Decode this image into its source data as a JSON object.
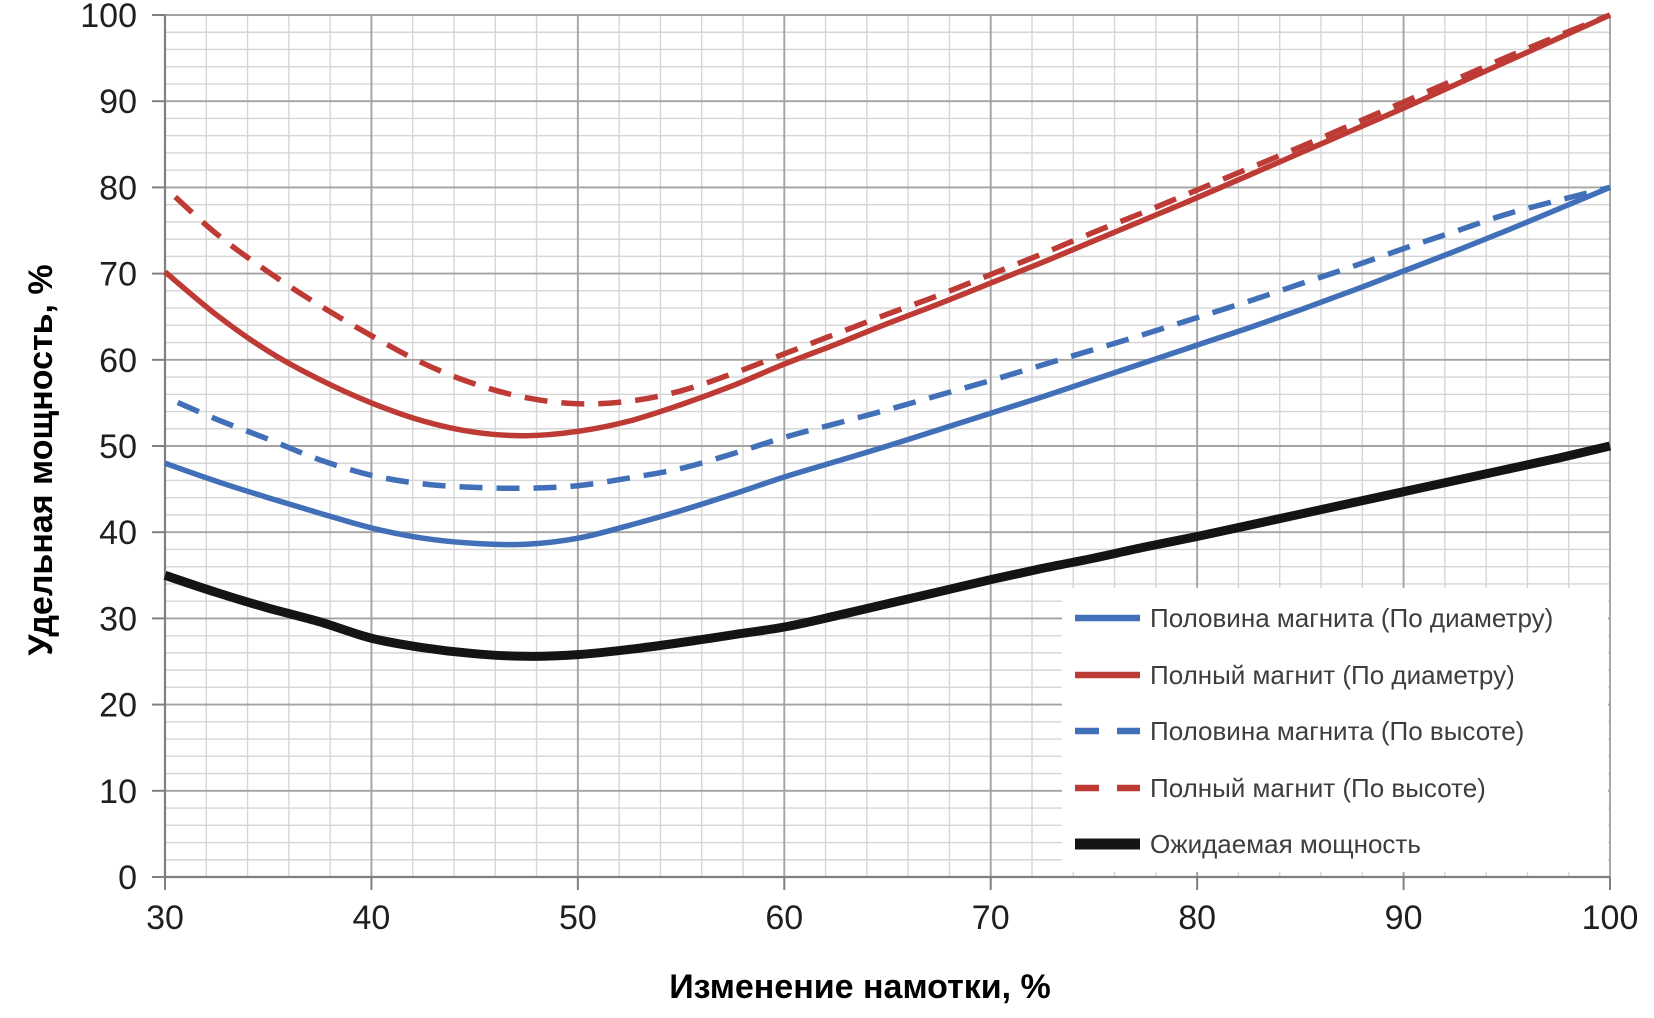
{
  "chart_data": {
    "type": "line",
    "title": "",
    "xlabel": "Изменение намотки, %",
    "ylabel": "Удельная мощность, %",
    "xlim": [
      30,
      100
    ],
    "ylim": [
      0,
      100
    ],
    "x_ticks": [
      30,
      40,
      50,
      60,
      70,
      80,
      90,
      100
    ],
    "y_ticks": [
      0,
      10,
      20,
      30,
      40,
      50,
      60,
      70,
      80,
      90,
      100
    ],
    "grid": {
      "minor_step": 2,
      "major_step": 10,
      "minor_color": "#d5d5d5",
      "major_color": "#a3a3a3",
      "axis_color": "#7f7f7f"
    },
    "legend_position": "lower right",
    "x": [
      30,
      32.5,
      35,
      37.5,
      40,
      42.5,
      45,
      47.5,
      50,
      52.5,
      55,
      57.5,
      60,
      62.5,
      65,
      67.5,
      70,
      72.5,
      75,
      77.5,
      80,
      82.5,
      85,
      87.5,
      90,
      92.5,
      95,
      97.5,
      100
    ],
    "series": [
      {
        "name": "Половина магнита (По диаметру)",
        "color": "#4170b8",
        "style": "solid",
        "width": 5.5,
        "values": [
          48.0,
          45.9,
          44.0,
          42.2,
          40.5,
          39.3,
          38.7,
          38.6,
          39.3,
          40.8,
          42.5,
          44.4,
          46.4,
          48.2,
          50.0,
          51.9,
          53.8,
          55.7,
          57.7,
          59.7,
          61.7,
          63.7,
          65.8,
          68.0,
          70.3,
          72.6,
          75.0,
          77.5,
          80.0
        ]
      },
      {
        "name": "Полный магнит (По диаметру)",
        "color": "#be3a34",
        "style": "solid",
        "width": 5.5,
        "values": [
          70.2,
          65.2,
          61.0,
          57.7,
          55.0,
          52.9,
          51.6,
          51.2,
          51.7,
          52.9,
          54.8,
          57.0,
          59.5,
          61.8,
          64.2,
          66.5,
          68.9,
          71.3,
          73.8,
          76.3,
          78.8,
          81.4,
          84.0,
          86.6,
          89.2,
          91.9,
          94.6,
          97.3,
          100.0
        ]
      },
      {
        "name": "Половина магнита (По высоте)",
        "color": "#4170b8",
        "style": "dashed",
        "width": 5.5,
        "values": [
          55.7,
          53.1,
          50.8,
          48.4,
          46.6,
          45.6,
          45.2,
          45.1,
          45.4,
          46.3,
          47.4,
          49.1,
          51.0,
          52.6,
          54.2,
          55.9,
          57.6,
          59.4,
          61.2,
          63.0,
          64.9,
          66.8,
          68.8,
          70.8,
          72.9,
          74.9,
          76.9,
          78.5,
          80.0
        ]
      },
      {
        "name": "Полный магнит (По высоте)",
        "color": "#be3a34",
        "style": "dashed",
        "width": 5.5,
        "values": [
          80.0,
          74.6,
          70.2,
          66.3,
          62.8,
          59.6,
          57.2,
          55.6,
          54.9,
          55.2,
          56.4,
          58.4,
          60.7,
          63.0,
          65.3,
          67.5,
          69.9,
          72.3,
          74.8,
          77.2,
          79.7,
          82.2,
          84.7,
          87.3,
          89.9,
          92.5,
          95.1,
          97.6,
          100.0
        ]
      },
      {
        "name": "Ожидаемая мощность",
        "color": "#141414",
        "style": "solid",
        "width": 9,
        "values": [
          35.0,
          33.0,
          31.2,
          29.6,
          27.7,
          26.6,
          25.9,
          25.6,
          25.8,
          26.4,
          27.2,
          28.1,
          29.0,
          30.3,
          31.7,
          33.1,
          34.5,
          35.8,
          37.0,
          38.3,
          39.5,
          40.8,
          42.1,
          43.4,
          44.7,
          46.0,
          47.3,
          48.6,
          50.0
        ]
      }
    ]
  }
}
